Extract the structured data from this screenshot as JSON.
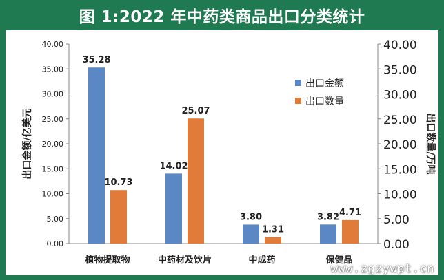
{
  "title": "图 1:2022 年中药类商品出口分类统计",
  "watermark": "www.zgzywpt.cn",
  "chart_data": {
    "type": "bar",
    "categories": [
      "植物提取物",
      "中药材及饮片",
      "中成药",
      "保健品"
    ],
    "series": [
      {
        "name": "出口金额",
        "axis": "left",
        "color": "#5b87c5",
        "values": [
          35.28,
          14.02,
          3.8,
          3.82
        ],
        "labels": [
          "35.28",
          "14.02",
          "3.80",
          "3.82"
        ]
      },
      {
        "name": "出口数量",
        "axis": "right",
        "color": "#e07b39",
        "values": [
          10.73,
          25.07,
          1.31,
          4.71
        ],
        "labels": [
          "10.73",
          "25.07",
          "1.31",
          "4.71"
        ]
      }
    ],
    "ylabel_left": "出口金额/亿美元",
    "ylabel_right": "出口数量/万吨",
    "ylim": [
      0,
      40
    ],
    "yticks_left": [
      "0.00",
      "5.00",
      "10.00",
      "15.00",
      "20.00",
      "25.00",
      "30.00",
      "35.00",
      "40.00"
    ],
    "yticks_right": [
      "0.00",
      "5.00",
      "10.00",
      "15.00",
      "20.00",
      "25.00",
      "30.00",
      "35.00",
      "40.00"
    ],
    "legend_position": "top-right"
  }
}
